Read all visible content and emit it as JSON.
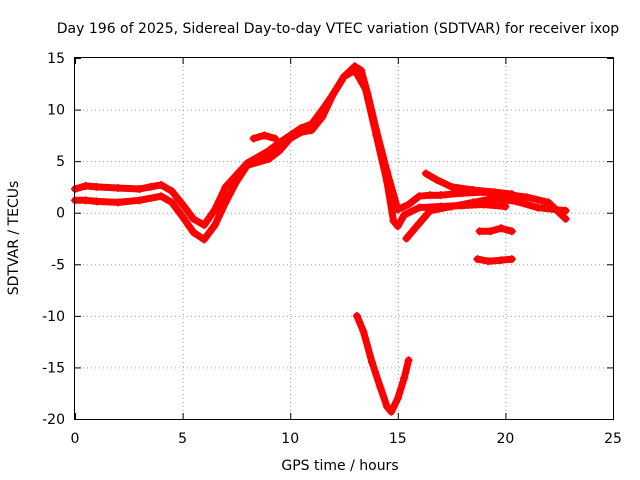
{
  "chart_data": {
    "type": "scatter",
    "title": "Day 196 of 2025, Sidereal Day-to-day VTEC variation (SDTVAR) for receiver ixop",
    "xlabel": "GPS time / hours",
    "ylabel": "SDTVAR / TECUs",
    "xlim": [
      0,
      25
    ],
    "ylim": [
      -20,
      15
    ],
    "xticks": [
      0,
      5,
      10,
      15,
      20,
      25
    ],
    "yticks": [
      -20,
      -15,
      -10,
      -5,
      0,
      5,
      10,
      15
    ],
    "grid": true,
    "series_color": "#ff0000",
    "series": [
      {
        "name": "arc-main-upper",
        "points": [
          [
            0.0,
            2.3
          ],
          [
            0.5,
            2.6
          ],
          [
            1.0,
            2.5
          ],
          [
            2.0,
            2.4
          ],
          [
            3.0,
            2.3
          ],
          [
            3.5,
            2.5
          ],
          [
            4.0,
            2.7
          ],
          [
            4.5,
            2.1
          ],
          [
            5.0,
            0.8
          ],
          [
            5.5,
            -0.6
          ],
          [
            6.0,
            -1.2
          ],
          [
            6.5,
            0.3
          ],
          [
            7.0,
            2.5
          ],
          [
            8.0,
            4.8
          ],
          [
            9.0,
            6.0
          ],
          [
            9.5,
            6.8
          ],
          [
            10.0,
            7.5
          ],
          [
            10.5,
            8.2
          ],
          [
            11.0,
            8.6
          ],
          [
            11.5,
            10.0
          ],
          [
            12.0,
            11.5
          ],
          [
            12.5,
            13.2
          ],
          [
            13.0,
            14.2
          ],
          [
            13.3,
            13.8
          ],
          [
            13.6,
            11.5
          ],
          [
            14.0,
            8.0
          ],
          [
            14.5,
            4.0
          ],
          [
            15.0,
            0.3
          ],
          [
            15.5,
            0.8
          ],
          [
            16.0,
            1.6
          ],
          [
            16.5,
            1.7
          ],
          [
            17.0,
            1.7
          ],
          [
            18.0,
            1.9
          ],
          [
            19.0,
            2.0
          ],
          [
            20.0,
            1.8
          ],
          [
            21.0,
            1.5
          ],
          [
            22.0,
            1.0
          ],
          [
            22.8,
            -0.6
          ]
        ]
      },
      {
        "name": "arc-main-lower",
        "points": [
          [
            0.0,
            1.2
          ],
          [
            0.5,
            1.2
          ],
          [
            1.0,
            1.1
          ],
          [
            2.0,
            1.0
          ],
          [
            3.0,
            1.2
          ],
          [
            4.0,
            1.6
          ],
          [
            4.5,
            1.0
          ],
          [
            5.0,
            -0.4
          ],
          [
            5.5,
            -1.9
          ],
          [
            6.0,
            -2.6
          ],
          [
            6.5,
            -1.2
          ],
          [
            7.0,
            1.0
          ],
          [
            7.5,
            3.0
          ],
          [
            8.0,
            4.6
          ],
          [
            9.0,
            5.2
          ],
          [
            9.5,
            6.0
          ],
          [
            10.0,
            7.2
          ],
          [
            10.5,
            7.8
          ],
          [
            11.0,
            8.0
          ],
          [
            11.5,
            9.3
          ],
          [
            12.0,
            11.5
          ],
          [
            12.5,
            13.2
          ],
          [
            13.0,
            13.8
          ],
          [
            13.5,
            12.0
          ],
          [
            14.0,
            7.5
          ],
          [
            14.5,
            3.0
          ],
          [
            14.8,
            -0.8
          ],
          [
            15.0,
            -1.3
          ],
          [
            15.3,
            -0.2
          ],
          [
            16.0,
            0.5
          ],
          [
            17.0,
            0.6
          ],
          [
            18.0,
            0.7
          ],
          [
            19.0,
            0.8
          ],
          [
            20.0,
            0.6
          ]
        ]
      },
      {
        "name": "arc-evening-upper",
        "points": [
          [
            16.3,
            3.8
          ],
          [
            16.8,
            3.2
          ],
          [
            17.5,
            2.5
          ],
          [
            18.5,
            2.2
          ],
          [
            19.5,
            2.0
          ],
          [
            20.3,
            1.8
          ]
        ]
      },
      {
        "name": "arc-post-dip",
        "points": [
          [
            15.4,
            -2.5
          ],
          [
            15.8,
            -1.5
          ],
          [
            16.5,
            0.2
          ],
          [
            17.5,
            0.6
          ],
          [
            18.5,
            1.0
          ],
          [
            19.5,
            1.4
          ],
          [
            20.5,
            1.1
          ],
          [
            21.5,
            0.5
          ],
          [
            22.8,
            0.2
          ]
        ]
      },
      {
        "name": "arc-short-1",
        "points": [
          [
            8.3,
            7.2
          ],
          [
            8.8,
            7.5
          ],
          [
            9.3,
            7.2
          ]
        ]
      },
      {
        "name": "arc-short-2",
        "points": [
          [
            18.8,
            -1.8
          ],
          [
            19.3,
            -1.8
          ],
          [
            19.8,
            -1.5
          ],
          [
            20.3,
            -1.8
          ]
        ]
      },
      {
        "name": "arc-short-3",
        "points": [
          [
            18.7,
            -4.5
          ],
          [
            19.2,
            -4.7
          ],
          [
            19.8,
            -4.6
          ],
          [
            20.3,
            -4.5
          ]
        ]
      },
      {
        "name": "arc-negative-dip",
        "points": [
          [
            13.1,
            -10.0
          ],
          [
            13.4,
            -11.5
          ],
          [
            13.8,
            -14.5
          ],
          [
            14.2,
            -17.0
          ],
          [
            14.5,
            -18.8
          ],
          [
            14.7,
            -19.3
          ],
          [
            15.0,
            -18.0
          ],
          [
            15.3,
            -16.0
          ],
          [
            15.5,
            -14.3
          ]
        ]
      }
    ]
  }
}
